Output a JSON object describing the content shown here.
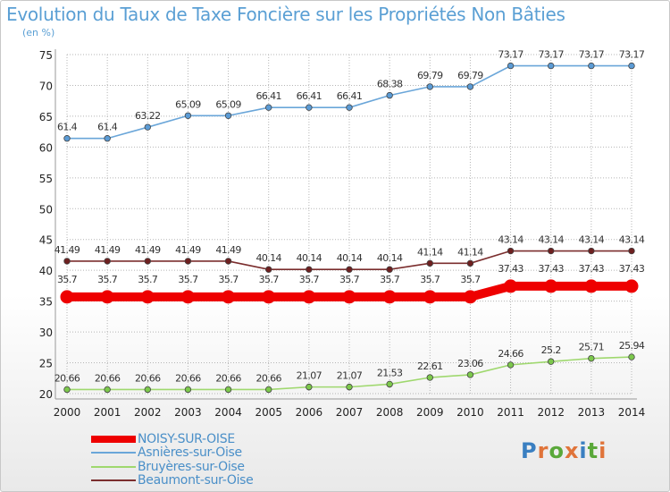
{
  "title": "Evolution du Taux de Taxe Foncière sur les Propriétés Non Bâties",
  "subtitle": "(en %)",
  "logo": "Proxiti",
  "colors": {
    "title": "#5a9fd4",
    "grid": "#b5b5b5",
    "axis_text": "#222222",
    "label_text": "#333333"
  },
  "chart_data": {
    "type": "line",
    "x": [
      "2000",
      "2001",
      "2002",
      "2003",
      "2004",
      "2005",
      "2006",
      "2007",
      "2008",
      "2009",
      "2010",
      "2011",
      "2012",
      "2013",
      "2014"
    ],
    "ylim": [
      20,
      75
    ],
    "yticks": [
      20,
      25,
      30,
      35,
      40,
      45,
      50,
      55,
      60,
      65,
      70,
      75
    ],
    "grid": true,
    "legend_position": "bottom-left",
    "series": [
      {
        "name": "NOISY-SUR-OISE",
        "color": "#ee0000",
        "marker_fill": "#ee0000",
        "emphasis": true,
        "values": [
          35.7,
          35.7,
          35.7,
          35.7,
          35.7,
          35.7,
          35.7,
          35.7,
          35.7,
          35.7,
          35.7,
          37.43,
          37.43,
          37.43,
          37.43
        ],
        "labels": [
          "35.7",
          "35.7",
          "35.7",
          "35.7",
          "35.7",
          "35.7",
          "35.7",
          "35.7",
          "35.7",
          "35.7",
          "35.7",
          "37.43",
          "37.43",
          "37.43",
          "37.43"
        ]
      },
      {
        "name": "Asnières-sur-Oise",
        "color": "#6aa6d9",
        "marker_fill": "#5b9bd5",
        "emphasis": false,
        "values": [
          61.4,
          61.4,
          63.22,
          65.09,
          65.09,
          66.41,
          66.41,
          66.41,
          68.38,
          69.79,
          69.79,
          73.17,
          73.17,
          73.17,
          73.17
        ],
        "labels": [
          "61.4",
          "61.4",
          "63.22",
          "65.09",
          "65.09",
          "66.41",
          "66.41",
          "66.41",
          "68.38",
          "69.79",
          "69.79",
          "73.17",
          "73.17",
          "73.17",
          "73.17"
        ]
      },
      {
        "name": "Bruyères-sur-Oise",
        "color": "#9fd86e",
        "marker_fill": "#7cc84c",
        "emphasis": false,
        "values": [
          20.66,
          20.66,
          20.66,
          20.66,
          20.66,
          20.66,
          21.07,
          21.07,
          21.53,
          22.61,
          23.06,
          24.66,
          25.2,
          25.71,
          25.94
        ],
        "labels": [
          "20.66",
          "20.66",
          "20.66",
          "20.66",
          "20.66",
          "20.66",
          "21.07",
          "21.07",
          "21.53",
          "22.61",
          "23.06",
          "24.66",
          "25.2",
          "25.71",
          "25.94"
        ]
      },
      {
        "name": "Beaumont-sur-Oise",
        "color": "#7b2e2e",
        "marker_fill": "#6e2020",
        "emphasis": false,
        "values": [
          41.49,
          41.49,
          41.49,
          41.49,
          41.49,
          40.14,
          40.14,
          40.14,
          40.14,
          41.14,
          41.14,
          43.14,
          43.14,
          43.14,
          43.14
        ],
        "labels": [
          "41.49",
          "41.49",
          "41.49",
          "41.49",
          "41.49",
          "40.14",
          "40.14",
          "40.14",
          "40.14",
          "41.14",
          "41.14",
          "43.14",
          "43.14",
          "43.14",
          "43.14"
        ]
      }
    ]
  }
}
